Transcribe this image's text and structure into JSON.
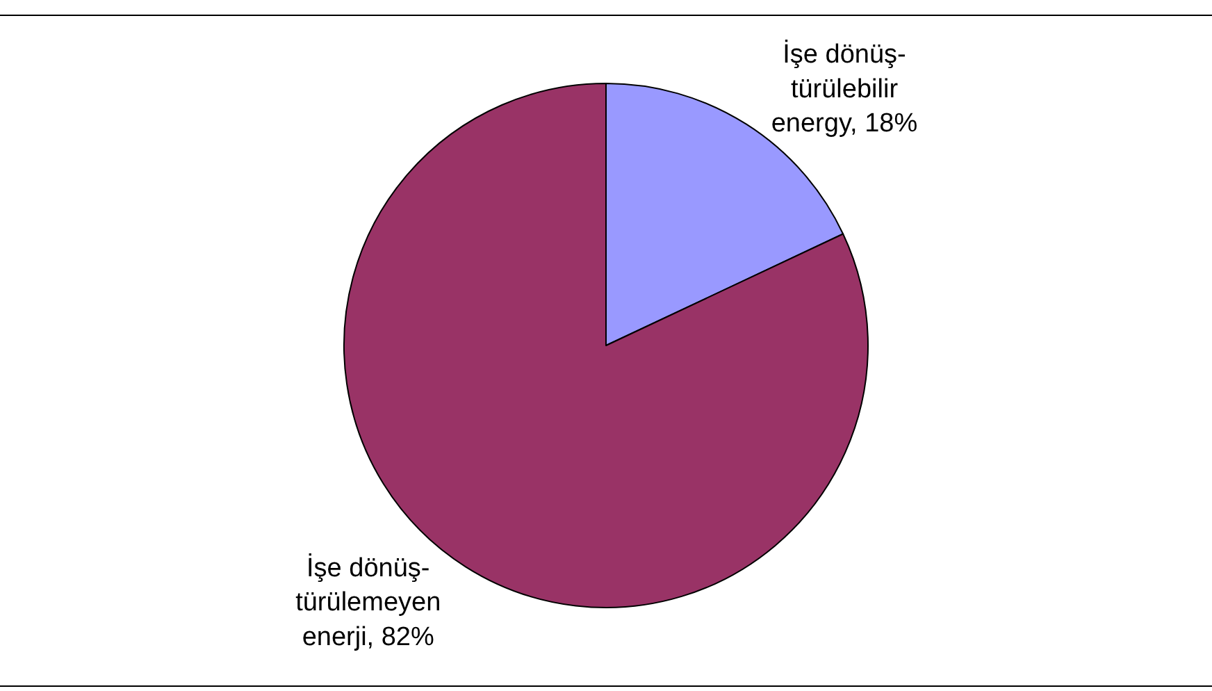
{
  "chart_data": {
    "type": "pie",
    "categories": [
      "İşe dönüş-\ntürülebilir\nenergy",
      "İşe dönüş-\ntürülemeyen\nenerji"
    ],
    "values": [
      18,
      82
    ],
    "value_labels": [
      "18%",
      "82%"
    ],
    "colors": [
      "#9999ff",
      "#993366"
    ],
    "legend": false
  }
}
